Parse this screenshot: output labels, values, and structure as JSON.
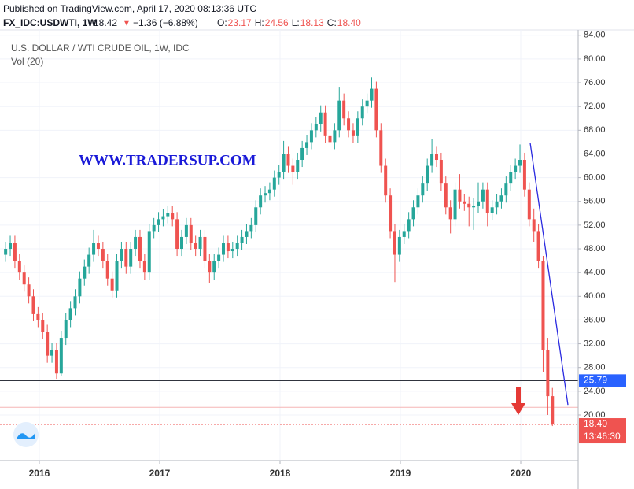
{
  "chart_data": {
    "type": "candlestick",
    "published": "Published on TradingView.com, April 17, 2020 08:13:36 UTC",
    "symbol": "FX_IDC:USDWTI, 1W",
    "price": "18.42",
    "direction": "▼",
    "change": "−1.36 (−6.88%)",
    "ohlc_labels": [
      {
        "key": "O:",
        "value": "23.17"
      },
      {
        "key": "H:",
        "value": "24.56"
      },
      {
        "key": "L:",
        "value": "18.13"
      },
      {
        "key": "C:",
        "value": "18.40"
      }
    ],
    "title": "U.S. DOLLAR / WTI CRUDE OIL, 1W, IDC",
    "indicator": "Vol (20)",
    "watermark": "WWW.TRADERSUP.COM",
    "up_color": "#26a69a",
    "down_color": "#ef5350",
    "grid": true,
    "xlim": [
      2015.706,
      2020.477
    ],
    "xticks": [
      2016,
      2017,
      2018,
      2019,
      2020
    ],
    "ylim": [
      12.3,
      84.9
    ],
    "yticks": [
      {
        "value": 20,
        "label": "20.00"
      },
      {
        "value": 24,
        "label": "24.00"
      },
      {
        "value": 28,
        "label": "28.00"
      },
      {
        "value": 32,
        "label": "32.00"
      },
      {
        "value": 36,
        "label": "36.00"
      },
      {
        "value": 40,
        "label": "40.00"
      },
      {
        "value": 44,
        "label": "44.00"
      },
      {
        "value": 48,
        "label": "48.00"
      },
      {
        "value": 52,
        "label": "52.00"
      },
      {
        "value": 56,
        "label": "56.00"
      },
      {
        "value": 60,
        "label": "60.00"
      },
      {
        "value": 64,
        "label": "64.00"
      },
      {
        "value": 68,
        "label": "68.00"
      },
      {
        "value": 72,
        "label": "72.00"
      },
      {
        "value": 76,
        "label": "76.00"
      },
      {
        "value": 80,
        "label": "80.00"
      },
      {
        "value": 84,
        "label": "84.00"
      }
    ],
    "x": [
      2015.72,
      2015.7585,
      2015.797,
      2015.8355,
      2015.874,
      2015.9125,
      2015.951,
      2015.9895,
      2016.028,
      2016.0665,
      2016.105,
      2016.1435,
      2016.182,
      2016.2205,
      2016.259,
      2016.2975,
      2016.336,
      2016.3745,
      2016.413,
      2016.4515,
      2016.49,
      2016.5285,
      2016.567,
      2016.6055,
      2016.644,
      2016.6825,
      2016.721,
      2016.7595,
      2016.798,
      2016.8365,
      2016.875,
      2016.9135,
      2016.952,
      2016.9905,
      2017.029,
      2017.0675,
      2017.106,
      2017.1445,
      2017.183,
      2017.2215,
      2017.26,
      2017.2985,
      2017.337,
      2017.3755,
      2017.414,
      2017.4525,
      2017.491,
      2017.5295,
      2017.568,
      2017.6065,
      2017.645,
      2017.6835,
      2017.722,
      2017.7605,
      2017.799,
      2017.8375,
      2017.876,
      2017.9145,
      2017.953,
      2017.9915,
      2018.03,
      2018.0685,
      2018.107,
      2018.1455,
      2018.184,
      2018.2225,
      2018.261,
      2018.2995,
      2018.338,
      2018.3765,
      2018.415,
      2018.4535,
      2018.492,
      2018.5305,
      2018.569,
      2018.6075,
      2018.646,
      2018.6845,
      2018.723,
      2018.7615,
      2018.8,
      2018.8385,
      2018.877,
      2018.9155,
      2018.954,
      2018.9925,
      2019.031,
      2019.0695,
      2019.108,
      2019.1465,
      2019.185,
      2019.2235,
      2019.262,
      2019.3005,
      2019.339,
      2019.3775,
      2019.416,
      2019.4545,
      2019.493,
      2019.5315,
      2019.57,
      2019.6085,
      2019.647,
      2019.6855,
      2019.724,
      2019.7625,
      2019.801,
      2019.8395,
      2019.878,
      2019.9165,
      2019.955,
      2019.9935,
      2020.032,
      2020.0705,
      2020.109,
      2020.1475,
      2020.186,
      2020.2245,
      2020.263
    ],
    "open": [
      47,
      48,
      49,
      46,
      44,
      42,
      40,
      37,
      36,
      34,
      30,
      31,
      27,
      33,
      36,
      38,
      40,
      43,
      45,
      47,
      49,
      48,
      46,
      43,
      41,
      46,
      48,
      45,
      48,
      50,
      46,
      44,
      51,
      52,
      53,
      53.5,
      54,
      53,
      48,
      50,
      52,
      49,
      48,
      50,
      46,
      44,
      46,
      47,
      49,
      47.6,
      48,
      49,
      50,
      51,
      52,
      55,
      57,
      57.4,
      58,
      60,
      61,
      64,
      62,
      61,
      63,
      65,
      66,
      68,
      69,
      71,
      67,
      66,
      68,
      73,
      70,
      68,
      67,
      70,
      72,
      73,
      75,
      68,
      62,
      57,
      51,
      47,
      50,
      51,
      53,
      55,
      57,
      59,
      62,
      64,
      63,
      59,
      55,
      53,
      58,
      56,
      55.6,
      55,
      55.3,
      56,
      58,
      54,
      55,
      56,
      57,
      59,
      61,
      62,
      63,
      58,
      53,
      51,
      46,
      31,
      23.17
    ],
    "high": [
      49.2,
      50.2,
      50.2,
      47.2,
      45.2,
      43.2,
      41.2,
      38.2,
      37.2,
      35.2,
      32.2,
      32.2,
      34.2,
      37.2,
      39.2,
      41.2,
      44.2,
      46.2,
      48.2,
      51.2,
      50.2,
      49.2,
      47.2,
      44.2,
      47.2,
      49.2,
      49.2,
      49.2,
      51.2,
      51.2,
      47.2,
      52.2,
      53.2,
      54.2,
      54.7,
      55.2,
      55.2,
      54.2,
      51.2,
      53.2,
      53.2,
      50.2,
      51.2,
      51.2,
      47.2,
      47.2,
      48.2,
      50.2,
      50.2,
      49.2,
      50.2,
      51.2,
      52.2,
      53.2,
      56.2,
      58.2,
      58.6,
      59.2,
      61.2,
      62.2,
      66.2,
      65.2,
      63.2,
      64.2,
      66.2,
      67.2,
      69.2,
      70.2,
      72.2,
      72.2,
      68.2,
      69.2,
      75.2,
      74.2,
      71.2,
      69.2,
      71.2,
      73.2,
      74.2,
      76.9,
      76.2,
      69.2,
      63.2,
      58.2,
      52.2,
      51.2,
      52.2,
      54.2,
      56.2,
      58.2,
      60.2,
      63.2,
      66.5,
      65.2,
      64.2,
      60.2,
      56.2,
      59.2,
      60.6,
      57.2,
      56.8,
      56.5,
      59.2,
      59.2,
      59.2,
      56.2,
      57.2,
      58.2,
      60.2,
      62.2,
      63.2,
      65.6,
      64.2,
      59.2,
      54.8,
      52.2,
      46.8,
      33,
      24.56
    ],
    "low": [
      45.8,
      46.8,
      44.8,
      42.8,
      40.8,
      38.8,
      35.8,
      34.8,
      32.8,
      28.8,
      28.8,
      26.1,
      26.5,
      31.8,
      34.8,
      36.8,
      38.8,
      41.8,
      43.8,
      45.8,
      46.8,
      44.8,
      41.8,
      39.8,
      39.8,
      44.8,
      43.8,
      43.8,
      46.8,
      44.8,
      42.8,
      42.8,
      49.8,
      50.8,
      51.8,
      52.3,
      51.8,
      46.8,
      46.8,
      48.8,
      47.8,
      46.8,
      46.8,
      44.8,
      42.2,
      42.8,
      44.8,
      45.8,
      46.4,
      46.4,
      46.8,
      47.8,
      48.8,
      49.8,
      50.8,
      53.8,
      55.8,
      56.2,
      56.8,
      58.8,
      59.8,
      60.8,
      58.8,
      59.8,
      61.8,
      63.8,
      64.8,
      66.8,
      67.8,
      65.8,
      64.8,
      64.8,
      66.8,
      68.8,
      66.8,
      65.8,
      65.8,
      68.8,
      70.8,
      71.8,
      66.8,
      60.8,
      55.8,
      49.8,
      42.4,
      45.8,
      48.8,
      49.8,
      51.8,
      53.8,
      55.8,
      57.8,
      60.8,
      61.8,
      57.8,
      53.8,
      50.6,
      51.8,
      54.8,
      54.4,
      51.8,
      51.2,
      54.1,
      54.8,
      51.8,
      52.8,
      53.8,
      54.8,
      55.8,
      57.8,
      59.8,
      60.8,
      56.8,
      51.8,
      49.2,
      44.8,
      27.2,
      20,
      18.13
    ],
    "close": [
      48,
      49,
      46,
      44,
      42,
      40,
      37,
      36,
      34,
      30,
      31,
      27,
      33,
      36,
      38,
      40,
      43,
      45,
      47,
      49,
      48,
      46,
      43,
      41,
      46,
      48,
      45,
      48,
      50,
      46,
      44,
      51,
      52,
      53,
      53.5,
      54,
      53,
      48,
      50,
      52,
      49,
      48,
      50,
      46,
      44,
      46,
      47,
      49,
      47.6,
      48,
      49,
      50,
      51,
      52,
      55,
      57,
      57.4,
      58,
      60,
      61,
      64,
      62,
      61,
      63,
      65,
      66,
      68,
      69,
      71,
      67,
      66,
      68,
      73,
      70,
      68,
      67,
      70,
      72,
      73,
      75,
      68,
      62,
      57,
      51,
      47,
      50,
      51,
      53,
      55,
      57,
      59,
      62,
      64,
      63,
      59,
      55,
      53,
      58,
      56,
      55.6,
      55,
      55.3,
      56,
      58,
      54,
      55,
      56,
      57,
      59,
      61,
      62,
      63,
      58,
      53,
      51,
      46,
      31,
      23.17,
      18.4
    ],
    "hlines": [
      {
        "value": 25.79,
        "label": "25.79",
        "color": "#131722",
        "label_color": "#2962ff"
      },
      {
        "value": 21.3,
        "color": "#f5b5b5"
      }
    ],
    "last_price": {
      "value": 18.4,
      "label": "18.40",
      "countdown": "13:46:30",
      "color": "#ef5350"
    },
    "trendline": {
      "x": [
        2020.078,
        2020.392
      ],
      "y": [
        65.9,
        21.7
      ],
      "color": "#2a2ae0"
    }
  }
}
